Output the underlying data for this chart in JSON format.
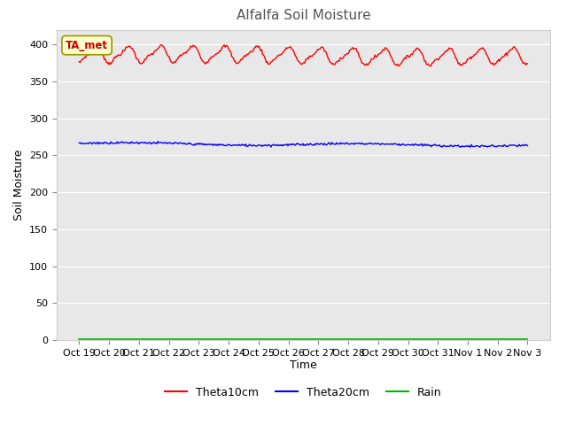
{
  "title": "Alfalfa Soil Moisture",
  "ylabel": "Soil Moisture",
  "xlabel": "Time",
  "annotation_text": "TA_met",
  "ylim": [
    0,
    420
  ],
  "yticks": [
    0,
    50,
    100,
    150,
    200,
    250,
    300,
    350,
    400
  ],
  "xtick_labels": [
    "Oct 19",
    "Oct 20",
    "Oct 21",
    "Oct 22",
    "Oct 23",
    "Oct 24",
    "Oct 25",
    "Oct 26",
    "Oct 27",
    "Oct 28",
    "Oct 29",
    "Oct 30",
    "Oct 31",
    "Nov 1",
    "Nov 2",
    "Nov 3"
  ],
  "theta10_color": "#ff0000",
  "theta20_color": "#0000ff",
  "rain_color": "#00bb00",
  "theta10_base": 385,
  "theta20_base": 266,
  "rain_base": 1.5,
  "n_points": 480,
  "bg_color": "#e8e8e8",
  "fig_bg_color": "#ffffff",
  "legend_labels": [
    "Theta10cm",
    "Theta20cm",
    "Rain"
  ],
  "title_fontsize": 11,
  "title_color": "#555555"
}
